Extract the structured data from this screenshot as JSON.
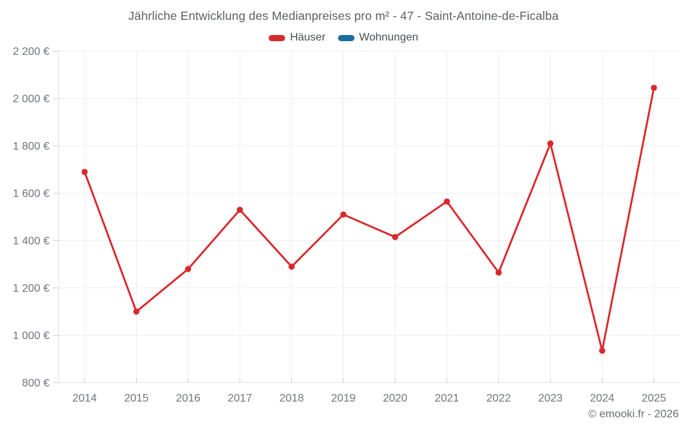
{
  "title": "Jährliche Entwicklung des Medianpreises pro m² - 47 - Saint-Antoine-de-Ficalba",
  "footer": "© emooki.fr - 2026",
  "legend": [
    {
      "id": "hauser",
      "label": "Häuser",
      "color": "#d8292d"
    },
    {
      "id": "wohnungen",
      "label": "Wohnungen",
      "color": "#1b6e9e"
    }
  ],
  "chart_data": {
    "type": "line",
    "title": "Jährliche Entwicklung des Medianpreises pro m² - 47 - Saint-Antoine-de-Ficalba",
    "categories": [
      "2014",
      "2015",
      "2016",
      "2017",
      "2018",
      "2019",
      "2020",
      "2021",
      "2022",
      "2023",
      "2024",
      "2025"
    ],
    "series": [
      {
        "name": "Häuser",
        "color": "#d8292d",
        "values": [
          1690,
          1100,
          1280,
          1530,
          1290,
          1510,
          1415,
          1565,
          1265,
          1810,
          935,
          2045
        ]
      },
      {
        "name": "Wohnungen",
        "color": "#1b6e9e",
        "values": []
      }
    ],
    "xlabel": "",
    "ylabel": "",
    "ylim": [
      800,
      2200
    ],
    "yticks": [
      800,
      1000,
      1200,
      1400,
      1600,
      1800,
      2000,
      2200
    ],
    "ytick_labels": [
      "800 €",
      "1 000 €",
      "1 200 €",
      "1 400 €",
      "1 600 €",
      "1 800 €",
      "2 000 €",
      "2 200 €"
    ],
    "grid": true,
    "legend_position": "top",
    "colors": {
      "grid": "#ededed",
      "axis": "#dfe2e4",
      "tick": "#c9ced2",
      "tick_label": "#6f757b"
    }
  }
}
